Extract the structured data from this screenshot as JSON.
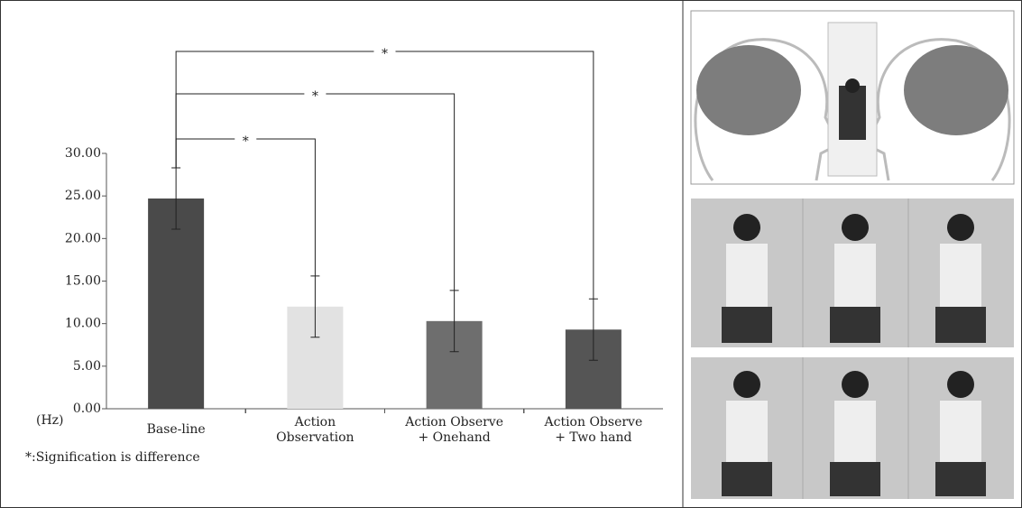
{
  "chart_data": {
    "type": "bar",
    "categories": [
      "Base-line",
      "Action\nObservation",
      "Action  Observe\n+ Onehand",
      "Action  Observe\n+ Two hand"
    ],
    "values": [
      24.7,
      12.0,
      10.3,
      9.3
    ],
    "errors": [
      3.6,
      3.6,
      3.6,
      3.6
    ],
    "colors": [
      "#4a4a4a",
      "#e2e2e2",
      "#6e6e6e",
      "#555555"
    ],
    "ylim": [
      0,
      30
    ],
    "yticks": [
      {
        "value": 0,
        "label": "0.00"
      },
      {
        "value": 5,
        "label": "5.00"
      },
      {
        "value": 10,
        "label": "10.00"
      },
      {
        "value": 15,
        "label": "15.00"
      },
      {
        "value": 20,
        "label": "20.00"
      },
      {
        "value": 25,
        "label": "25.00"
      },
      {
        "value": 30,
        "label": "30.00"
      }
    ],
    "y_unit": "(Hz)",
    "footnote": "*:Signification is difference",
    "comparisons": [
      {
        "label": "*",
        "pair": [
          0,
          3
        ]
      },
      {
        "label": "*",
        "pair": [
          0,
          2
        ]
      },
      {
        "label": "*",
        "pair": [
          0,
          1
        ]
      }
    ]
  }
}
